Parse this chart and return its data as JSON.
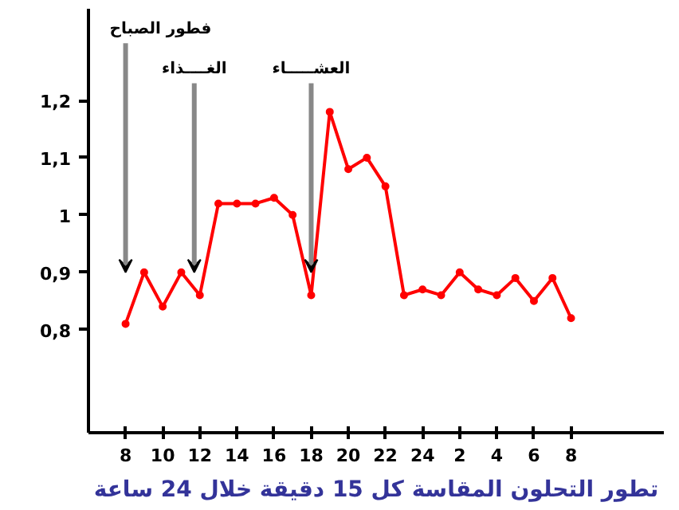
{
  "chart_data": {
    "type": "line",
    "title": "تطور التحلون المقاسة كل 15 دقيقة خلال 24 ساعة",
    "categories": [
      "8",
      null,
      "10",
      null,
      "12",
      null,
      "14",
      null,
      "16",
      null,
      "18",
      null,
      "20",
      null,
      "22",
      null,
      "24",
      null,
      "2",
      null,
      "4",
      null,
      "6",
      null,
      "8"
    ],
    "series": [
      {
        "color": "#ff0000",
        "values": [
          0.81,
          0.9,
          0.84,
          0.9,
          0.86,
          1.02,
          1.02,
          1.02,
          1.03,
          1.0,
          0.86,
          1.18,
          1.08,
          1.1,
          1.05,
          0.86,
          0.87,
          0.86,
          0.9,
          0.87,
          0.86,
          0.89,
          0.85,
          0.89,
          0.82
        ]
      }
    ],
    "ylim": [
      0.62,
      1.36
    ],
    "yticks": [
      {
        "value": 0.8,
        "label": "0,8"
      },
      {
        "value": 0.9,
        "label": "0,9"
      },
      {
        "value": 1.0,
        "label": "1"
      },
      {
        "value": 1.1,
        "label": "1,1"
      },
      {
        "value": 1.2,
        "label": "1,2"
      }
    ],
    "annotations": [
      "فطور الصباح",
      "الغــــذاء",
      "العشـــــاء"
    ],
    "grid": false,
    "marker": "circle",
    "line_style": "solid"
  }
}
